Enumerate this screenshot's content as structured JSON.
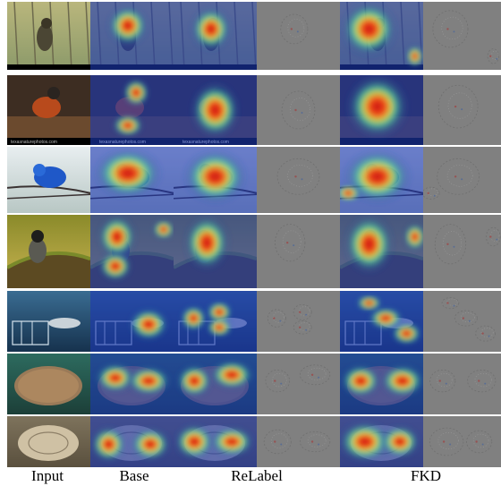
{
  "captions": {
    "input": "Input",
    "base": "Base",
    "relabel": "ReLabel",
    "fkd": "FKD"
  },
  "watermarks": {
    "row2": "texasnaturephotos.com"
  },
  "colors": {
    "heat_blue": "#1a2fa8",
    "heat_red": "#d4101a",
    "heat_yellow": "#f3e03a",
    "gradient_gray": "#808080"
  },
  "panels": [
    "input-image",
    "base-cam",
    "relabel-cam",
    "relabel-gradient",
    "fkd-cam",
    "fkd-gradient"
  ],
  "rows": [
    "bird-on-wire",
    "robin-on-log",
    "blue-bunting-on-barbed-wire",
    "junco-on-mossy-rock",
    "shark-in-cage",
    "turtle-underwater",
    "pale-turtle"
  ]
}
